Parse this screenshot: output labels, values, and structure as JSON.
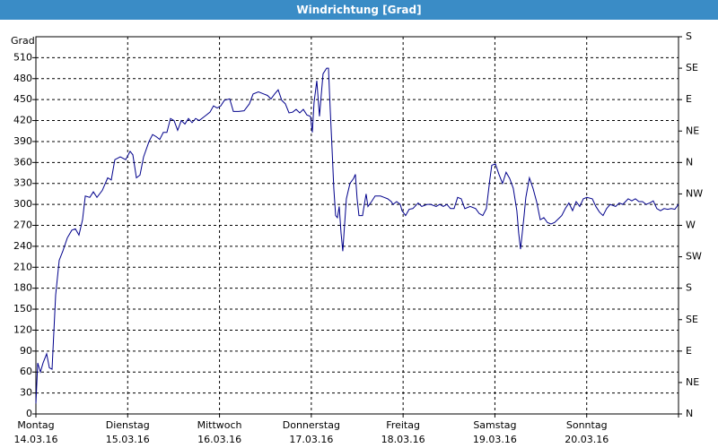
{
  "chart_data": {
    "type": "line",
    "title": "Windrichtung [Grad]",
    "y_label": "Grad",
    "xlim": [
      0,
      7
    ],
    "xticks": [
      {
        "value": 0,
        "label": "Montag",
        "date": "14.03.16"
      },
      {
        "value": 1,
        "label": "Dienstag",
        "date": "15.03.16"
      },
      {
        "value": 2,
        "label": "Mittwoch",
        "date": "16.03.16"
      },
      {
        "value": 3,
        "label": "Donnerstag",
        "date": "17.03.16"
      },
      {
        "value": 4,
        "label": "Freitag",
        "date": "18.03.16"
      },
      {
        "value": 5,
        "label": "Samstag",
        "date": "19.03.16"
      },
      {
        "value": 6,
        "label": "Sonntag",
        "date": "20.03.16"
      },
      7
    ],
    "ylim": [
      0,
      540
    ],
    "yticks": [
      0,
      30,
      60,
      90,
      120,
      150,
      180,
      210,
      240,
      270,
      300,
      330,
      360,
      390,
      420,
      450,
      480,
      510
    ],
    "y2lim": [
      0,
      540
    ],
    "y2ticks": [
      {
        "value": 0,
        "label": "N"
      },
      {
        "value": 45,
        "label": "NE"
      },
      {
        "value": 90,
        "label": "E"
      },
      {
        "value": 135,
        "label": "SE"
      },
      {
        "value": 180,
        "label": "S"
      },
      {
        "value": 225,
        "label": "SW"
      },
      {
        "value": 270,
        "label": "W"
      },
      {
        "value": 315,
        "label": "NW"
      },
      {
        "value": 360,
        "label": "N"
      },
      {
        "value": 405,
        "label": "NE"
      },
      {
        "value": 450,
        "label": "E"
      },
      {
        "value": 495,
        "label": "SE"
      },
      {
        "value": 540,
        "label": "S"
      }
    ],
    "grid": true,
    "color": "#00008b",
    "x": [
      0,
      0.02,
      0.049,
      0.078,
      0.117,
      0.147,
      0.176,
      0.215,
      0.254,
      0.293,
      0.342,
      0.391,
      0.43,
      0.469,
      0.508,
      0.538,
      0.587,
      0.626,
      0.665,
      0.723,
      0.782,
      0.821,
      0.86,
      0.919,
      0.978,
      1.026,
      1.056,
      1.095,
      1.134,
      1.173,
      1.232,
      1.271,
      1.31,
      1.349,
      1.388,
      1.427,
      1.466,
      1.505,
      1.544,
      1.584,
      1.623,
      1.662,
      1.701,
      1.74,
      1.779,
      1.838,
      1.896,
      1.935,
      1.975,
      2.014,
      2.053,
      2.111,
      2.151,
      2.209,
      2.268,
      2.326,
      2.366,
      2.424,
      2.483,
      2.522,
      2.561,
      2.6,
      2.639,
      2.678,
      2.717,
      2.757,
      2.796,
      2.835,
      2.874,
      2.913,
      2.952,
      2.991,
      3.011,
      3.03,
      3.06,
      3.089,
      3.108,
      3.128,
      3.167,
      3.187,
      3.206,
      3.226,
      3.245,
      3.265,
      3.284,
      3.304,
      3.324,
      3.343,
      3.363,
      3.382,
      3.421,
      3.46,
      3.48,
      3.499,
      3.519,
      3.558,
      3.597,
      3.617,
      3.656,
      3.695,
      3.754,
      3.793,
      3.832,
      3.871,
      3.89,
      3.93,
      3.969,
      3.988,
      4.027,
      4.066,
      4.106,
      4.164,
      4.203,
      4.262,
      4.301,
      4.36,
      4.399,
      4.438,
      4.477,
      4.516,
      4.555,
      4.594,
      4.633,
      4.672,
      4.731,
      4.79,
      4.829,
      4.868,
      4.907,
      4.946,
      4.966,
      5.005,
      5.044,
      5.083,
      5.122,
      5.161,
      5.2,
      5.239,
      5.259,
      5.279,
      5.298,
      5.318,
      5.337,
      5.376,
      5.415,
      5.454,
      5.494,
      5.533,
      5.572,
      5.611,
      5.65,
      5.689,
      5.728,
      5.767,
      5.806,
      5.846,
      5.885,
      5.924,
      5.963,
      6.002,
      6.061,
      6.1,
      6.139,
      6.178,
      6.217,
      6.256,
      6.315,
      6.354,
      6.393,
      6.452,
      6.491,
      6.53,
      6.569,
      6.608,
      6.647,
      6.686,
      6.725,
      6.764,
      6.804,
      6.843,
      6.882,
      6.921,
      6.96,
      7.0
    ],
    "values": [
      15,
      73,
      60,
      73,
      86,
      66,
      64,
      170,
      220,
      233,
      252,
      263,
      265,
      256,
      278,
      312,
      310,
      318,
      310,
      320,
      338,
      335,
      364,
      368,
      364,
      376,
      371,
      338,
      342,
      368,
      390,
      400,
      397,
      393,
      403,
      403,
      423,
      420,
      406,
      420,
      415,
      423,
      417,
      423,
      420,
      426,
      432,
      441,
      438,
      441,
      449,
      451,
      433,
      433,
      434,
      444,
      458,
      461,
      458,
      456,
      451,
      458,
      464,
      449,
      444,
      431,
      432,
      436,
      431,
      436,
      428,
      426,
      403,
      446,
      477,
      426,
      456,
      487,
      495,
      495,
      436,
      380,
      323,
      284,
      281,
      297,
      259,
      233,
      272,
      308,
      330,
      337,
      343,
      308,
      284,
      284,
      315,
      297,
      304,
      312,
      312,
      310,
      308,
      304,
      300,
      304,
      300,
      291,
      284,
      293,
      294,
      302,
      297,
      300,
      300,
      297,
      300,
      297,
      300,
      294,
      294,
      310,
      308,
      294,
      297,
      294,
      287,
      284,
      294,
      337,
      356,
      358,
      343,
      330,
      346,
      337,
      323,
      291,
      259,
      236,
      259,
      284,
      310,
      338,
      323,
      304,
      278,
      281,
      274,
      272,
      274,
      279,
      284,
      294,
      302,
      291,
      304,
      297,
      308,
      310,
      308,
      297,
      289,
      284,
      294,
      300,
      297,
      302,
      300,
      308,
      305,
      308,
      304,
      304,
      300,
      302,
      305,
      294,
      291,
      294,
      293,
      294,
      293,
      300
    ]
  }
}
